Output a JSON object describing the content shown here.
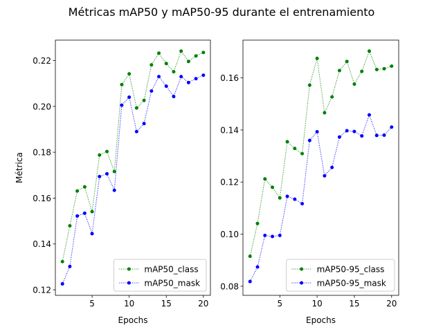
{
  "figure": {
    "title": "Métricas mAP50 y mAP50-95 durante el entrenamiento"
  },
  "chart_data": [
    {
      "type": "line",
      "title": "",
      "xlabel": "Epochs",
      "ylabel": "Métrica",
      "xlim": [
        0.05,
        20.95
      ],
      "ylim": [
        0.1176,
        0.2289
      ],
      "xticks": [
        5,
        10,
        15,
        20
      ],
      "xtick_labels": [
        "5",
        "10",
        "15",
        "20"
      ],
      "yticks": [
        0.12,
        0.14,
        0.16,
        0.18,
        0.2,
        0.22
      ],
      "ytick_labels": [
        "0.12",
        "0.14",
        "0.16",
        "0.18",
        "0.20",
        "0.22"
      ],
      "grid": false,
      "legend_position": "lower-right",
      "x": [
        1,
        2,
        3,
        4,
        5,
        6,
        7,
        8,
        9,
        10,
        11,
        12,
        13,
        14,
        15,
        16,
        17,
        18,
        19,
        20
      ],
      "series": [
        {
          "name": "mAP50_class",
          "color": "#008000",
          "line_style": "dotted",
          "marker": "dot",
          "values": [
            0.1323,
            0.1479,
            0.1631,
            0.1649,
            0.1541,
            0.1788,
            0.1803,
            0.1716,
            0.2095,
            0.2142,
            0.1993,
            0.2026,
            0.2181,
            0.2232,
            0.2187,
            0.2151,
            0.2241,
            0.2196,
            0.222,
            0.2235
          ]
        },
        {
          "name": "mAP50_mask",
          "color": "#0000ff",
          "line_style": "dotted",
          "marker": "dot",
          "values": [
            0.1226,
            0.1302,
            0.1522,
            0.1534,
            0.1445,
            0.1694,
            0.1706,
            0.1634,
            0.2005,
            0.204,
            0.189,
            0.1925,
            0.2067,
            0.213,
            0.2088,
            0.2043,
            0.213,
            0.2104,
            0.2121,
            0.2136
          ]
        }
      ]
    },
    {
      "type": "line",
      "title": "",
      "xlabel": "Epochs",
      "ylabel": "",
      "xlim": [
        0.05,
        20.95
      ],
      "ylim": [
        0.0765,
        0.1745
      ],
      "xticks": [
        5,
        10,
        15,
        20
      ],
      "xtick_labels": [
        "5",
        "10",
        "15",
        "20"
      ],
      "yticks": [
        0.08,
        0.1,
        0.12,
        0.14,
        0.16
      ],
      "ytick_labels": [
        "0.08",
        "0.10",
        "0.12",
        "0.14",
        "0.16"
      ],
      "grid": false,
      "legend_position": "lower-right",
      "x": [
        1,
        2,
        3,
        4,
        5,
        6,
        7,
        8,
        9,
        10,
        11,
        12,
        13,
        14,
        15,
        16,
        17,
        18,
        19,
        20
      ],
      "series": [
        {
          "name": "mAP50-95_class",
          "color": "#008000",
          "line_style": "dotted",
          "marker": "dot",
          "values": [
            0.0915,
            0.1041,
            0.1212,
            0.118,
            0.1139,
            0.1355,
            0.1329,
            0.1309,
            0.1572,
            0.1675,
            0.1466,
            0.1527,
            0.1628,
            0.1663,
            0.1576,
            0.1625,
            0.1703,
            0.1632,
            0.1635,
            0.1645
          ]
        },
        {
          "name": "mAP50-95_mask",
          "color": "#0000ff",
          "line_style": "dotted",
          "marker": "dot",
          "values": [
            0.0818,
            0.0874,
            0.0995,
            0.0991,
            0.0995,
            0.1145,
            0.1134,
            0.1117,
            0.136,
            0.1393,
            0.1224,
            0.1256,
            0.1373,
            0.1397,
            0.1394,
            0.1377,
            0.1458,
            0.1379,
            0.138,
            0.1411
          ]
        }
      ]
    }
  ]
}
